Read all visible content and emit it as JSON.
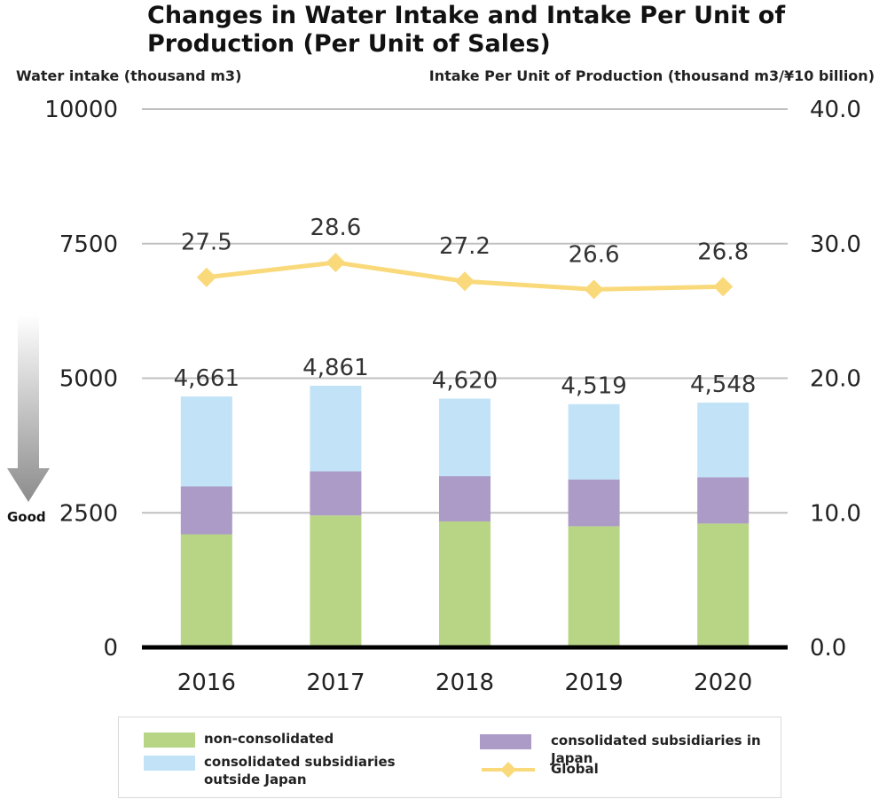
{
  "chart_data": {
    "type": "bar",
    "title": "Changes in Water Intake and Intake Per Unit of Production (Per Unit of Sales)",
    "ylabel_left": "Water intake (thousand m3)",
    "ylabel_right": "Intake Per Unit of Production (thousand m3/¥10 billion)",
    "categories": [
      "2016",
      "2017",
      "2018",
      "2019",
      "2020"
    ],
    "ylim_left": [
      0,
      10000
    ],
    "yticks_left": [
      "0",
      "2500",
      "5000",
      "7500",
      "10000"
    ],
    "ylim_right": [
      0,
      40
    ],
    "yticks_right": [
      "0.0",
      "10.0",
      "20.0",
      "30.0",
      "40.0"
    ],
    "stacked": true,
    "series": [
      {
        "name": "non-consolidated",
        "values": [
          2100,
          2450,
          2340,
          2250,
          2300
        ],
        "color": "#b8d585"
      },
      {
        "name": "consolidated subsidiaries in Japan",
        "values": [
          890,
          820,
          840,
          870,
          860
        ],
        "color": "#ab9bc6"
      },
      {
        "name": "consolidated subsidiaries outside Japan",
        "values": [
          1671,
          1591,
          1440,
          1399,
          1388
        ],
        "color": "#c2e3f7"
      }
    ],
    "bar_totals": [
      "4,661",
      "4,861",
      "4,620",
      "4,519",
      "4,548"
    ],
    "line_series": {
      "name": "Global",
      "axis": "right",
      "values": [
        27.5,
        28.6,
        27.2,
        26.6,
        26.8
      ],
      "labels": [
        "27.5",
        "28.6",
        "27.2",
        "26.6",
        "26.8"
      ],
      "color": "#f9d97a"
    },
    "annotation": "Good",
    "grid": true,
    "legend_position": "bottom"
  },
  "legend": {
    "non_consolidated": "non-consolidated",
    "japan": "consolidated subsidiaries in Japan",
    "outside_line1": "consolidated subsidiaries",
    "outside_line2": "outside Japan",
    "global": "Global"
  }
}
